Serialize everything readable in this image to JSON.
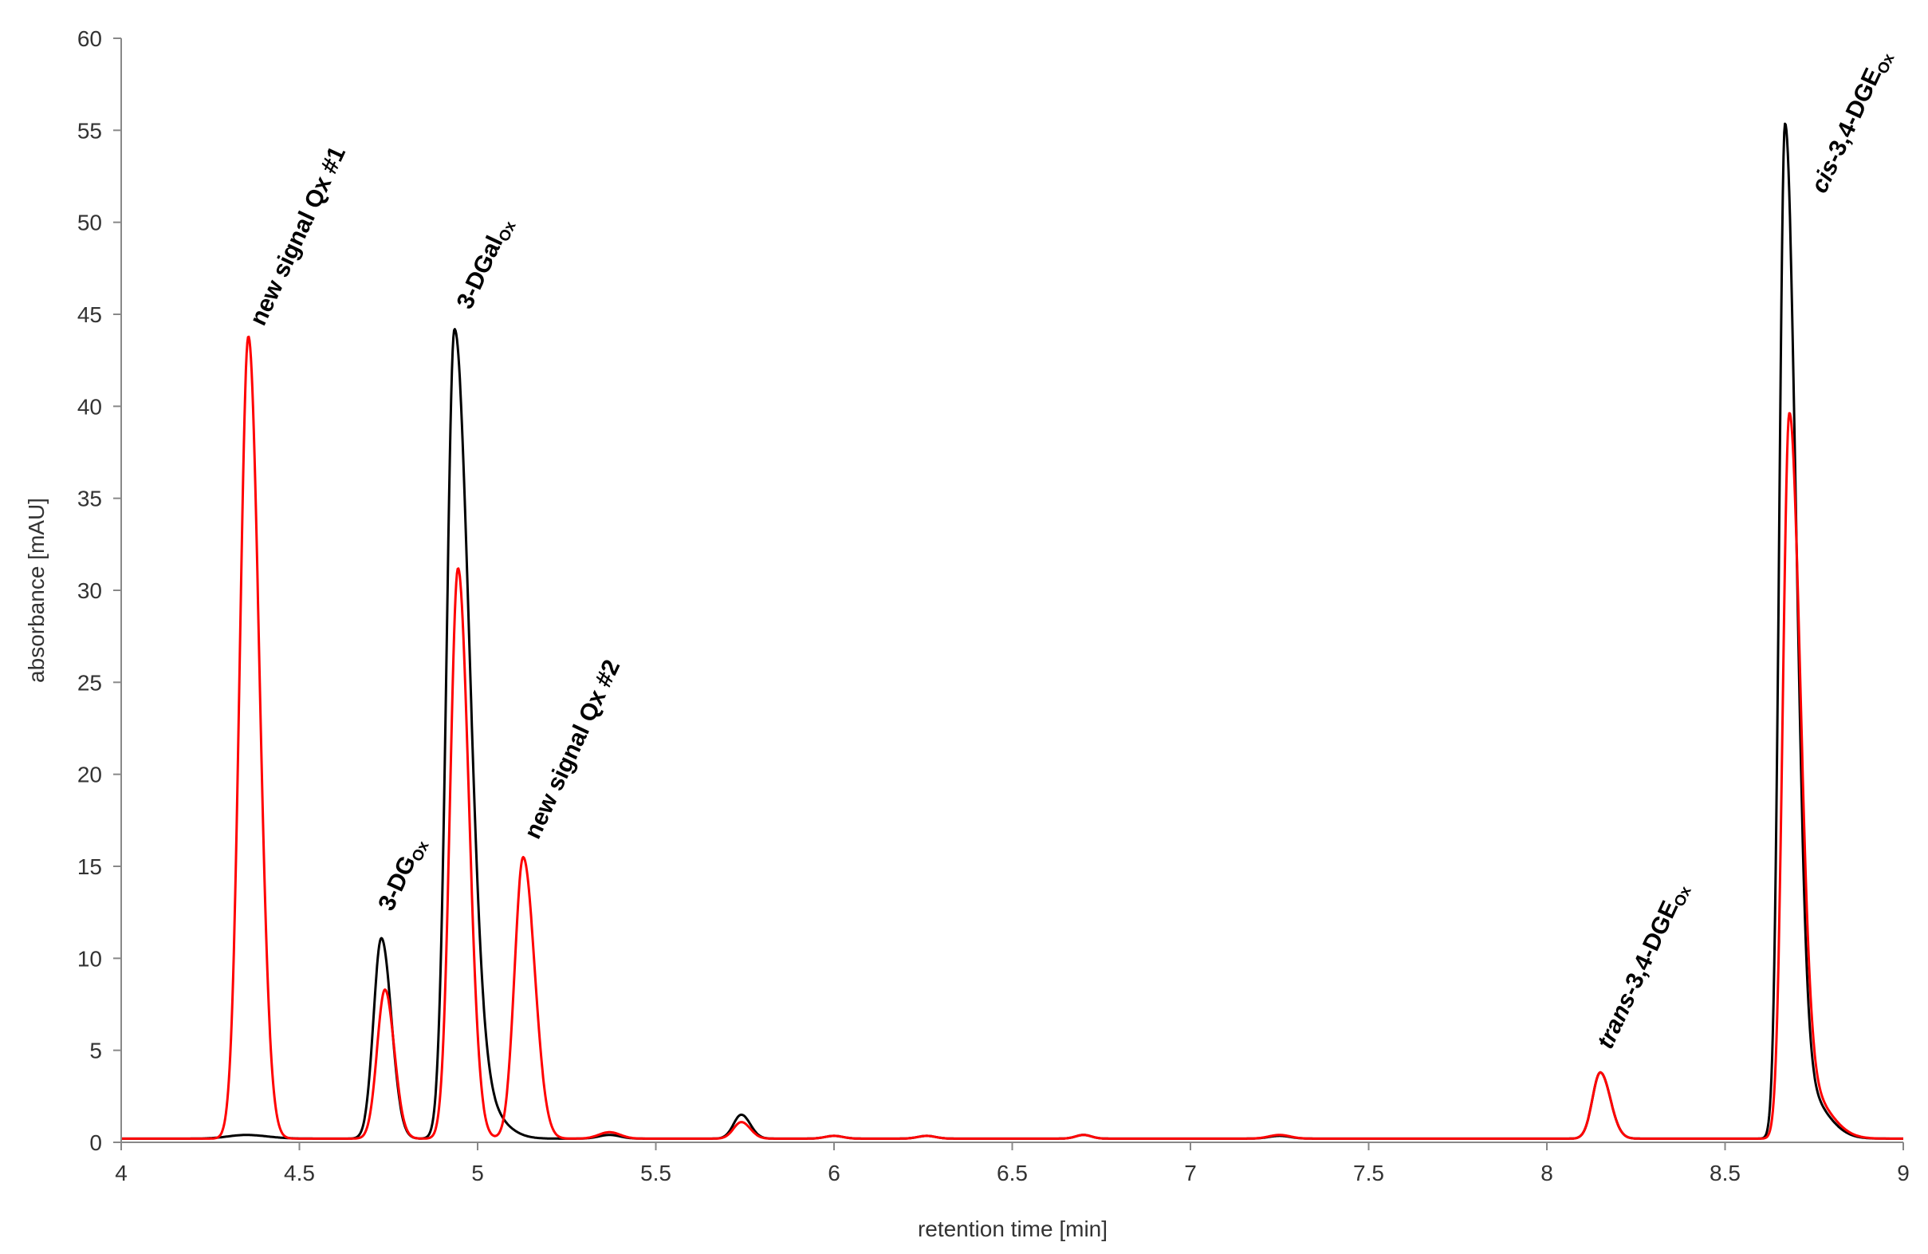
{
  "chart_data": {
    "type": "line",
    "xlabel": "retention time [min]",
    "ylabel": "absorbance [mAU]",
    "xlim": [
      4,
      9
    ],
    "ylim": [
      0,
      60
    ],
    "x_ticks": [
      "4",
      "4.5",
      "5",
      "5.5",
      "6",
      "6.5",
      "7",
      "7.5",
      "8",
      "8.5",
      "9"
    ],
    "y_ticks": [
      "0",
      "5",
      "10",
      "15",
      "20",
      "25",
      "30",
      "35",
      "40",
      "45",
      "50",
      "55",
      "60"
    ],
    "grid": false,
    "legend": "none",
    "series": [
      {
        "color": "#000000",
        "baseline": 0.2,
        "peaks": [
          {
            "x": 4.35,
            "height": 0.2,
            "sigma_left": 0.05,
            "sigma_right": 0.06
          },
          {
            "x": 4.73,
            "height": 10.9,
            "sigma_left": 0.022,
            "sigma_right": 0.028
          },
          {
            "x": 4.935,
            "height": 43.8,
            "sigma_left": 0.022,
            "sigma_right": 0.04
          },
          {
            "x": 5.0,
            "height": 2.0,
            "sigma_left": 0.03,
            "sigma_right": 0.06
          },
          {
            "x": 5.37,
            "height": 0.2,
            "sigma_left": 0.03,
            "sigma_right": 0.03
          },
          {
            "x": 5.74,
            "height": 1.3,
            "sigma_left": 0.022,
            "sigma_right": 0.025
          },
          {
            "x": 6.0,
            "height": 0.15,
            "sigma_left": 0.025,
            "sigma_right": 0.025
          },
          {
            "x": 6.26,
            "height": 0.15,
            "sigma_left": 0.025,
            "sigma_right": 0.025
          },
          {
            "x": 6.7,
            "height": 0.2,
            "sigma_left": 0.022,
            "sigma_right": 0.022
          },
          {
            "x": 7.25,
            "height": 0.15,
            "sigma_left": 0.03,
            "sigma_right": 0.03
          },
          {
            "x": 8.15,
            "height": 3.6,
            "sigma_left": 0.022,
            "sigma_right": 0.028
          },
          {
            "x": 8.668,
            "height": 54.6,
            "sigma_left": 0.016,
            "sigma_right": 0.03
          },
          {
            "x": 8.72,
            "height": 2.5,
            "sigma_left": 0.03,
            "sigma_right": 0.06
          }
        ]
      },
      {
        "color": "#ff0000",
        "baseline": 0.2,
        "peaks": [
          {
            "x": 4.357,
            "height": 43.6,
            "sigma_left": 0.024,
            "sigma_right": 0.03
          },
          {
            "x": 4.74,
            "height": 8.1,
            "sigma_left": 0.022,
            "sigma_right": 0.026
          },
          {
            "x": 4.945,
            "height": 31.0,
            "sigma_left": 0.022,
            "sigma_right": 0.03
          },
          {
            "x": 5.128,
            "height": 15.3,
            "sigma_left": 0.024,
            "sigma_right": 0.032
          },
          {
            "x": 5.37,
            "height": 0.35,
            "sigma_left": 0.03,
            "sigma_right": 0.03
          },
          {
            "x": 5.74,
            "height": 0.9,
            "sigma_left": 0.022,
            "sigma_right": 0.025
          },
          {
            "x": 6.0,
            "height": 0.15,
            "sigma_left": 0.025,
            "sigma_right": 0.025
          },
          {
            "x": 6.26,
            "height": 0.15,
            "sigma_left": 0.025,
            "sigma_right": 0.025
          },
          {
            "x": 6.7,
            "height": 0.2,
            "sigma_left": 0.022,
            "sigma_right": 0.022
          },
          {
            "x": 7.25,
            "height": 0.2,
            "sigma_left": 0.03,
            "sigma_right": 0.03
          },
          {
            "x": 8.15,
            "height": 3.6,
            "sigma_left": 0.022,
            "sigma_right": 0.028
          },
          {
            "x": 8.68,
            "height": 38.8,
            "sigma_left": 0.018,
            "sigma_right": 0.03
          },
          {
            "x": 8.73,
            "height": 2.5,
            "sigma_left": 0.03,
            "sigma_right": 0.06
          }
        ]
      }
    ],
    "annotations": [
      {
        "main": "new signal Qx #1",
        "sub": "",
        "italic_prefix": "",
        "x": 4.4,
        "y": 44.3
      },
      {
        "main": "3-DG",
        "sub": "Ox",
        "italic_prefix": "",
        "x": 4.76,
        "y": 12.5
      },
      {
        "main": "3-DGal",
        "sub": "Ox",
        "italic_prefix": "",
        "x": 4.98,
        "y": 45.2
      },
      {
        "main": "new signal Qx #2",
        "sub": "",
        "italic_prefix": "",
        "x": 5.17,
        "y": 16.4
      },
      {
        "main": "-3,4-DGE",
        "sub": "Ox",
        "italic_prefix": "trans",
        "x": 8.18,
        "y": 5.0
      },
      {
        "main": "-3,4-DGE",
        "sub": "Ox",
        "italic_prefix": "cis",
        "x": 8.78,
        "y": 51.5
      }
    ]
  }
}
